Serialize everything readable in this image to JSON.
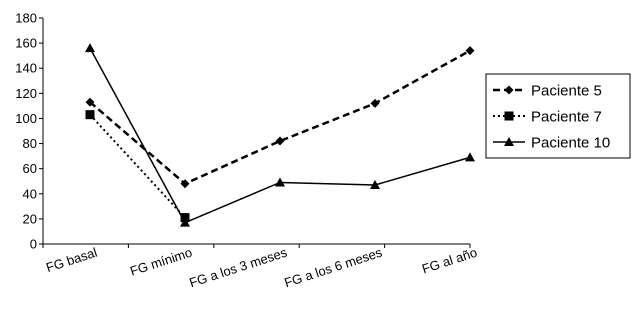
{
  "chart_data": {
    "type": "line",
    "title": "",
    "xlabel": "",
    "ylabel": "",
    "categories": [
      "FG basal",
      "FG mínimo",
      "FG a los 3 meses",
      "FG a los 6 meses",
      "FG al año"
    ],
    "yticks": [
      0,
      20,
      40,
      60,
      80,
      100,
      120,
      140,
      160,
      180
    ],
    "ylim": [
      0,
      180
    ],
    "grid": false,
    "legend_position": "right",
    "series": [
      {
        "name": "Paciente 5",
        "values": [
          113,
          48,
          82,
          112,
          154
        ],
        "line_style": "dashed",
        "marker": "diamond",
        "color": "#000000"
      },
      {
        "name": "Paciente 7",
        "values": [
          103,
          21,
          null,
          null,
          null
        ],
        "line_style": "dotted",
        "marker": "square",
        "color": "#000000"
      },
      {
        "name": "Paciente 10",
        "values": [
          156,
          17,
          49,
          47,
          69
        ],
        "line_style": "solid",
        "marker": "triangle",
        "color": "#000000"
      }
    ]
  }
}
